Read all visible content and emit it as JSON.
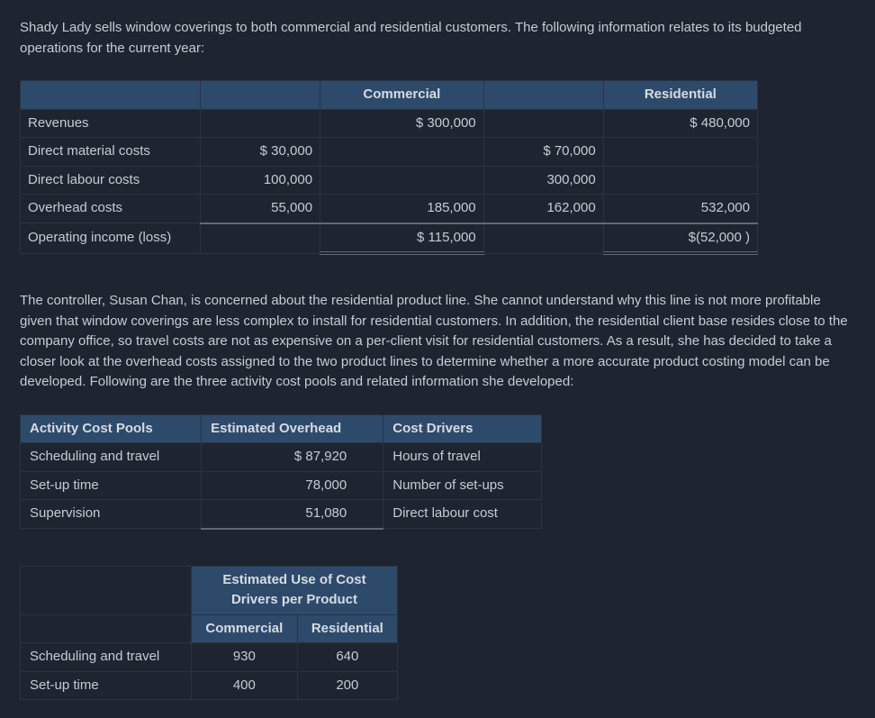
{
  "intro": "Shady Lady sells window coverings to both commercial and residential customers. The following information relates to its budgeted operations for the current year:",
  "ops": {
    "headers": {
      "commercial": "Commercial",
      "residential": "Residential"
    },
    "rows": {
      "revenues": {
        "label": "Revenues",
        "c_sub": "",
        "c_tot": "$ 300,000",
        "r_sub": "",
        "r_tot": "$ 480,000"
      },
      "direct_material": {
        "label": "Direct material costs",
        "c_sub": "$ 30,000",
        "c_tot": "",
        "r_sub": "$ 70,000",
        "r_tot": ""
      },
      "direct_labour": {
        "label": "Direct labour costs",
        "c_sub": "100,000",
        "c_tot": "",
        "r_sub": "300,000",
        "r_tot": ""
      },
      "overhead": {
        "label": "Overhead costs",
        "c_sub": "55,000",
        "c_tot": "185,000",
        "r_sub": "162,000",
        "r_tot": "532,000"
      },
      "op_income": {
        "label": "Operating income (loss)",
        "c_sub": "",
        "c_tot": "$ 115,000",
        "r_sub": "",
        "r_tot": "$(52,000   )"
      }
    }
  },
  "middle": "The controller, Susan Chan, is concerned about the residential product line. She cannot understand why this line is not more profitable given that window coverings are less complex to install for residential customers. In addition, the residential client base resides close to the company office, so travel costs are not as expensive on a per-client visit for residential customers. As a result, she has decided to take a closer look at the overhead costs assigned to the two product lines to determine whether a more accurate product costing model can be developed. Following are the three activity cost pools and related information she developed:",
  "acp": {
    "headers": {
      "pool": "Activity Cost Pools",
      "overhead": "Estimated Overhead",
      "drivers": "Cost Drivers"
    },
    "rows": {
      "sched": {
        "pool": "Scheduling and travel",
        "overhead": "$ 87,920",
        "driver": "Hours of travel"
      },
      "setup": {
        "pool": "Set-up time",
        "overhead": "78,000",
        "driver": "Number of set-ups"
      },
      "superv": {
        "pool": "Supervision",
        "overhead": "51,080",
        "driver": "Direct labour cost"
      }
    }
  },
  "euc": {
    "title": "Estimated Use of Cost Drivers per Product",
    "headers": {
      "commercial": "Commercial",
      "residential": "Residential"
    },
    "rows": {
      "sched": {
        "label": "Scheduling and travel",
        "commercial": "930",
        "residential": "640"
      },
      "setup": {
        "label": "Set-up time",
        "commercial": "400",
        "residential": "200"
      }
    }
  }
}
